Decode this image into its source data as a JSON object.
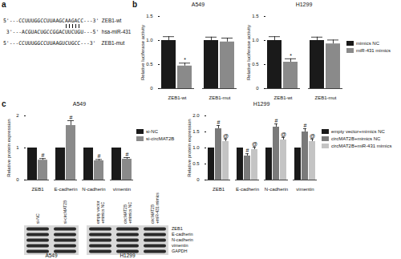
{
  "panel_labels": [
    "a",
    "b",
    "c"
  ],
  "sequences": [
    {
      "text": "5'---CCUUUGGCCUUAAGCAAGACC---3'",
      "label": "ZEB1-wt"
    },
    {
      "text": "3'---ACGUACUGCCGGACUUCUGU---5'",
      "label": "hsa-miR-431"
    },
    {
      "text": "5'---CCUUUGGCCUUAAGUCUGCC---3'",
      "label": "ZEB1-mut"
    }
  ],
  "chart_data": [
    {
      "type": "bar",
      "title": "A549",
      "ylabel": "Relative luciferase activity",
      "categories": [
        "ZEB1-wt",
        "ZEB1-mut"
      ],
      "series": [
        {
          "name": "mimics NC",
          "color": "#1a1a1a",
          "values": [
            1.0,
            1.0
          ],
          "errors": [
            0.08,
            0.07
          ],
          "marks": [
            null,
            null
          ]
        },
        {
          "name": "miR-431 mimics",
          "color": "#8a8a8a",
          "values": [
            0.47,
            0.97
          ],
          "errors": [
            0.06,
            0.08
          ],
          "marks": [
            "*",
            null
          ]
        }
      ],
      "ylim": [
        0,
        1.5
      ],
      "yticks": [
        0,
        0.5,
        {
          "value": 1,
          "label": "1.0"
        },
        1.5
      ]
    },
    {
      "type": "bar",
      "title": "H1299",
      "ylabel": "Relative luciferase activity",
      "categories": [
        "ZEB1-wt",
        "ZEB1-mut"
      ],
      "series": [
        {
          "name": "mimics NC",
          "color": "#1a1a1a",
          "values": [
            1.0,
            1.0
          ],
          "errors": [
            0.08,
            0.07
          ],
          "marks": [
            null,
            null
          ]
        },
        {
          "name": "miR-431 mimics",
          "color": "#8a8a8a",
          "values": [
            0.55,
            0.93
          ],
          "errors": [
            0.07,
            0.08
          ],
          "marks": [
            "*",
            null
          ]
        }
      ],
      "ylim": [
        0,
        1.5
      ],
      "yticks": [
        0,
        0.5,
        {
          "value": 1,
          "label": "1.0"
        },
        1.5
      ],
      "legend": "right"
    },
    {
      "type": "bar",
      "title": "A549",
      "ylabel": "Relative protein expression",
      "categories": [
        "ZEB1",
        "E-cadherin",
        "N-cadherin",
        "vimentin"
      ],
      "series": [
        {
          "name": "si-NC",
          "color": "#1a1a1a",
          "values": [
            1.0,
            1.0,
            1.0,
            1.0
          ],
          "errors": [
            0,
            0,
            0,
            0
          ],
          "marks": [
            null,
            null,
            null,
            null
          ]
        },
        {
          "name": "si-circMAT2B",
          "color": "#8a8a8a",
          "values": [
            0.62,
            1.7,
            0.6,
            0.65
          ],
          "errors": [
            0.05,
            0.15,
            0.04,
            0.05
          ],
          "marks": [
            "#",
            "#",
            "#",
            "#"
          ]
        }
      ],
      "ylim": [
        0,
        2
      ],
      "yticks": [
        0,
        1,
        2
      ],
      "legend": "right"
    },
    {
      "type": "bar",
      "title": "H1299",
      "ylabel": "Relative protein expression",
      "categories": [
        "ZEB1",
        "E-cadherin",
        "N-cadherin",
        "vimentin"
      ],
      "series": [
        {
          "name": "empty vector+mimics NC",
          "color": "#1a1a1a",
          "values": [
            1.0,
            1.0,
            1.0,
            1.0
          ],
          "errors": [
            0,
            0,
            0,
            0
          ],
          "marks": [
            null,
            null,
            null,
            null
          ]
        },
        {
          "name": "circMAT2B+mimics NC",
          "color": "#7a7a7a",
          "values": [
            1.6,
            0.75,
            1.65,
            1.5
          ],
          "errors": [
            0.1,
            0.07,
            0.1,
            0.1
          ],
          "marks": [
            "#",
            "#",
            "#",
            "#"
          ]
        },
        {
          "name": "circMAT2B+miR-431 mimics",
          "color": "#c4c4c4",
          "values": [
            1.2,
            0.95,
            1.25,
            1.2
          ],
          "errors": [
            0.08,
            0.07,
            0.08,
            0.08
          ],
          "marks": [
            "@",
            "@",
            "@",
            "@"
          ]
        }
      ],
      "ylim": [
        0,
        2
      ],
      "yticks": [
        0,
        {
          "value": 0.5,
          "label": "0.5"
        },
        {
          "value": 1,
          "label": "1.0"
        },
        {
          "value": 1.5,
          "label": "1.5"
        },
        {
          "value": 2,
          "label": "2.0"
        }
      ],
      "legend": "right"
    }
  ],
  "blot": {
    "proteins": [
      "ZEB1",
      "E-cadherin",
      "N-cadherin",
      "vimentin",
      "GAPDH"
    ],
    "groups": [
      {
        "name": "A549",
        "lanes": [
          [
            "si-NC"
          ],
          [
            "si-circMAT2B"
          ]
        ]
      },
      {
        "name": "H1299",
        "lanes": [
          [
            "empty vector",
            "+mimics NC"
          ],
          [
            "circMAT2B",
            "+mimics NC"
          ],
          [
            "circMAT2B",
            "+miR-431 mimics"
          ]
        ]
      }
    ]
  }
}
